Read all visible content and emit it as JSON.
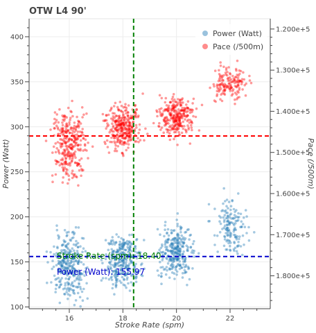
{
  "chart_data": {
    "type": "scatter",
    "title": "OTW L4 90'",
    "xlabel": "Stroke Rate (spm)",
    "ylabel": "Power (Watt)",
    "y2label": "Pace (/500m)",
    "xlim": [
      14.5,
      23.5
    ],
    "ylim": [
      98,
      420
    ],
    "y2lim": [
      188000,
      117500
    ],
    "x_ticks": [
      16,
      18,
      20,
      22
    ],
    "y_ticks": [
      100,
      150,
      200,
      250,
      300,
      350,
      400
    ],
    "y2_ticks": [
      120000,
      130000,
      140000,
      150000,
      160000,
      170000,
      180000
    ],
    "y2_tick_labels": [
      "1.200e+5",
      "1.300e+5",
      "1.400e+5",
      "1.500e+5",
      "1.600e+5",
      "1.700e+5",
      "1.800e+5"
    ],
    "grid": true,
    "legend_position": "top-right",
    "series": [
      {
        "name": "Power (Watt)",
        "axis": "left",
        "color": "#1f77b4",
        "clusters": [
          {
            "x": 16,
            "y_center": 145,
            "y_spread": 32,
            "count": 300
          },
          {
            "x": 18,
            "y_center": 150,
            "y_spread": 28,
            "count": 300
          },
          {
            "x": 20,
            "y_center": 162,
            "y_spread": 26,
            "count": 280
          },
          {
            "x": 22,
            "y_center": 188,
            "y_spread": 28,
            "count": 150
          }
        ]
      },
      {
        "name": "Pace (/500m)",
        "axis": "right",
        "color": "#ff0000",
        "clusters": [
          {
            "x": 16,
            "y_center": 148500,
            "y_spread": 8000,
            "count": 300
          },
          {
            "x": 18,
            "y_center": 144000,
            "y_spread": 5000,
            "count": 300
          },
          {
            "x": 20,
            "y_center": 141500,
            "y_spread": 4500,
            "count": 280
          },
          {
            "x": 22,
            "y_center": 133500,
            "y_spread": 3800,
            "count": 150
          }
        ]
      }
    ],
    "reference_lines": {
      "vertical": {
        "x": 18.4,
        "color": "#008000"
      },
      "horizontal_power": {
        "y": 155.97,
        "color": "#0000cc"
      },
      "horizontal_pace": {
        "y": 146000,
        "color": "#ff0000"
      }
    },
    "annotations": [
      {
        "text": "Stroke Rate (spm): 18.40",
        "color": "#008000"
      },
      {
        "text": "Power (Watt): 155.97",
        "color": "#0000cc"
      }
    ]
  }
}
